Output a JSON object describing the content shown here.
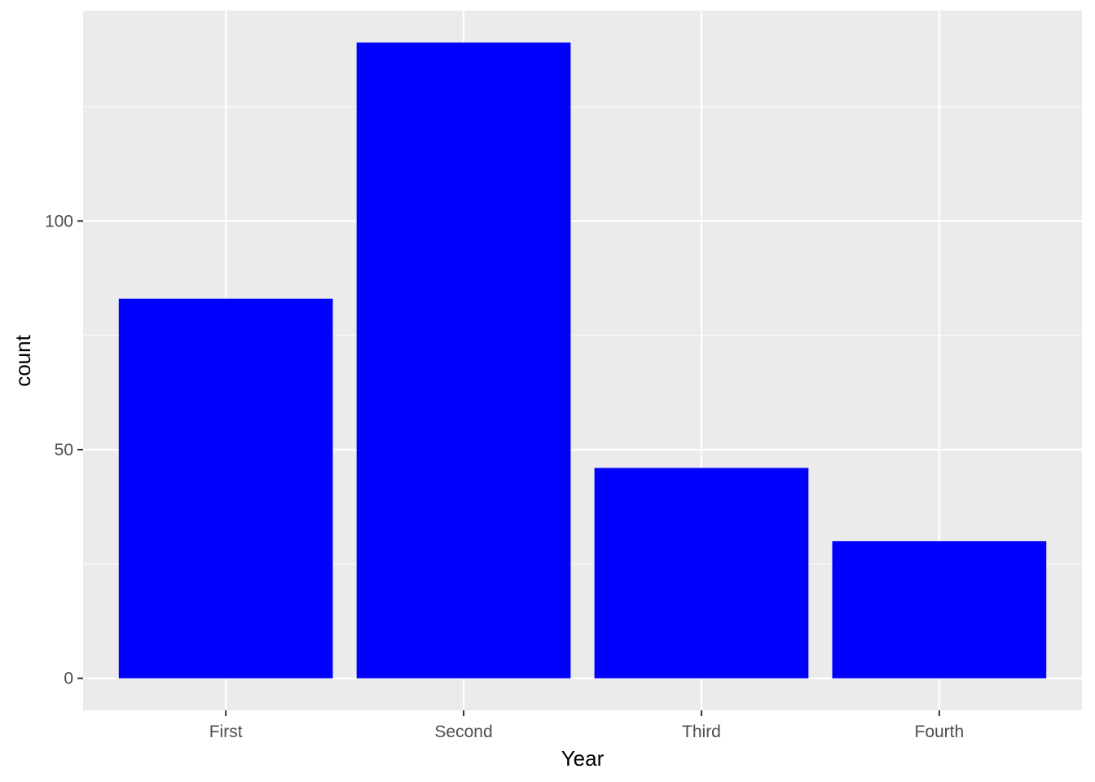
{
  "chart_data": {
    "type": "bar",
    "categories": [
      "First",
      "Second",
      "Third",
      "Fourth"
    ],
    "values": [
      83,
      139,
      46,
      30
    ],
    "xlabel": "Year",
    "ylabel": "count",
    "ylim": [
      -7,
      146
    ],
    "yticks": [
      0,
      50,
      100
    ],
    "ytick_labels": [
      "0",
      "50",
      "100"
    ],
    "minor_yticks": [
      25,
      75,
      125
    ],
    "grid": true,
    "legend": "none",
    "colors": {
      "bar": "#0000ff",
      "panel_background": "#ebebeb",
      "grid": "#ffffff",
      "tick_label": "#4d4d4d",
      "tick_mark": "#333333"
    }
  }
}
